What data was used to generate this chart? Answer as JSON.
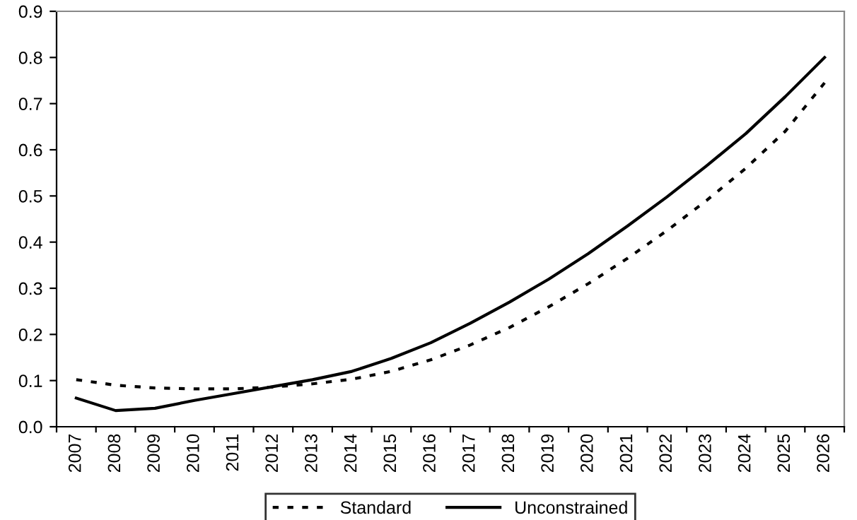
{
  "chart_data": {
    "type": "line",
    "categories": [
      "2007",
      "2008",
      "2009",
      "2010",
      "2011",
      "2012",
      "2013",
      "2014",
      "2015",
      "2016",
      "2017",
      "2018",
      "2019",
      "2020",
      "2021",
      "2022",
      "2023",
      "2024",
      "2025",
      "2026"
    ],
    "series": [
      {
        "name": "Standard",
        "color": "#000000",
        "line_style": "dotted",
        "values": [
          0.102,
          0.09,
          0.084,
          0.082,
          0.082,
          0.086,
          0.093,
          0.103,
          0.12,
          0.145,
          0.177,
          0.215,
          0.26,
          0.31,
          0.365,
          0.425,
          0.49,
          0.56,
          0.64,
          0.745
        ]
      },
      {
        "name": "Unconstrained",
        "color": "#000000",
        "line_style": "solid",
        "values": [
          0.062,
          0.035,
          0.04,
          0.057,
          0.072,
          0.087,
          0.102,
          0.12,
          0.148,
          0.182,
          0.224,
          0.27,
          0.32,
          0.375,
          0.435,
          0.498,
          0.565,
          0.635,
          0.715,
          0.8
        ]
      }
    ],
    "ylim": [
      0,
      0.9
    ],
    "yticks": [
      {
        "value": 0,
        "label": "0.0"
      },
      0.1,
      0.2,
      0.3,
      0.4,
      0.5,
      0.6,
      0.7,
      0.8,
      0.9
    ],
    "grid": false,
    "legend": "bottom",
    "marker": "none"
  }
}
